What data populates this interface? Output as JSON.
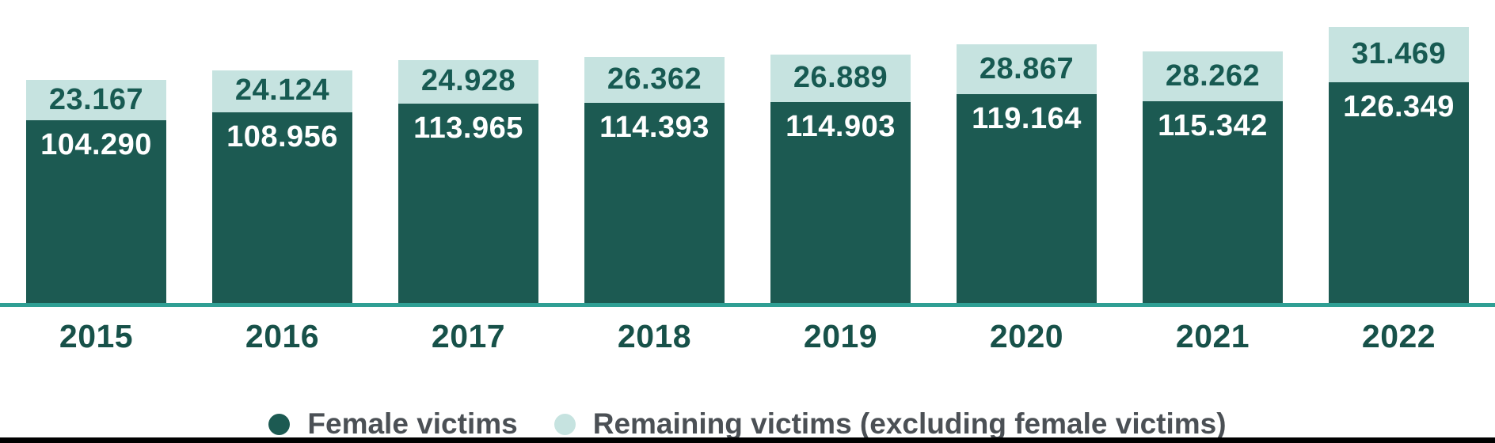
{
  "colors": {
    "female": "#1c5a52",
    "remaining": "#c6e3e0",
    "axis_line": "#2f9f94",
    "female_value_text": "#ffffff",
    "remaining_value_text": "#175a52",
    "year_text": "#175149",
    "legend_text": "#4b5055",
    "bottom_bar": "#000000"
  },
  "chart_data": {
    "type": "bar",
    "stacked": true,
    "orientation": "vertical",
    "categories": [
      "2015",
      "2016",
      "2017",
      "2018",
      "2019",
      "2020",
      "2021",
      "2022"
    ],
    "series": [
      {
        "name": "Female victims",
        "values": [
          104290,
          108956,
          113965,
          114393,
          114903,
          119164,
          115342,
          126349
        ],
        "labels": [
          "104.290",
          "108.956",
          "113.965",
          "114.393",
          "114.903",
          "119.164",
          "115.342",
          "126.349"
        ]
      },
      {
        "name": "Remaining victims (excluding female victims)",
        "values": [
          23167,
          24124,
          24928,
          26362,
          26889,
          28867,
          28262,
          31469
        ],
        "labels": [
          "23.167",
          "24.124",
          "24.928",
          "26.362",
          "26.889",
          "28.867",
          "28.262",
          "31.469"
        ]
      }
    ],
    "totals": [
      127457,
      133080,
      138893,
      140755,
      141792,
      148031,
      143604,
      157818
    ],
    "title": "",
    "xlabel": "",
    "ylabel": "",
    "ylim": [
      0,
      157818
    ],
    "grid": false,
    "legend_position": "bottom",
    "value_labels_shown": true,
    "number_format": "thousands-dot"
  },
  "legend": {
    "items": [
      {
        "label": "Female victims",
        "color_key": "female"
      },
      {
        "label": "Remaining victims (excluding female victims)",
        "color_key": "remaining"
      }
    ]
  }
}
